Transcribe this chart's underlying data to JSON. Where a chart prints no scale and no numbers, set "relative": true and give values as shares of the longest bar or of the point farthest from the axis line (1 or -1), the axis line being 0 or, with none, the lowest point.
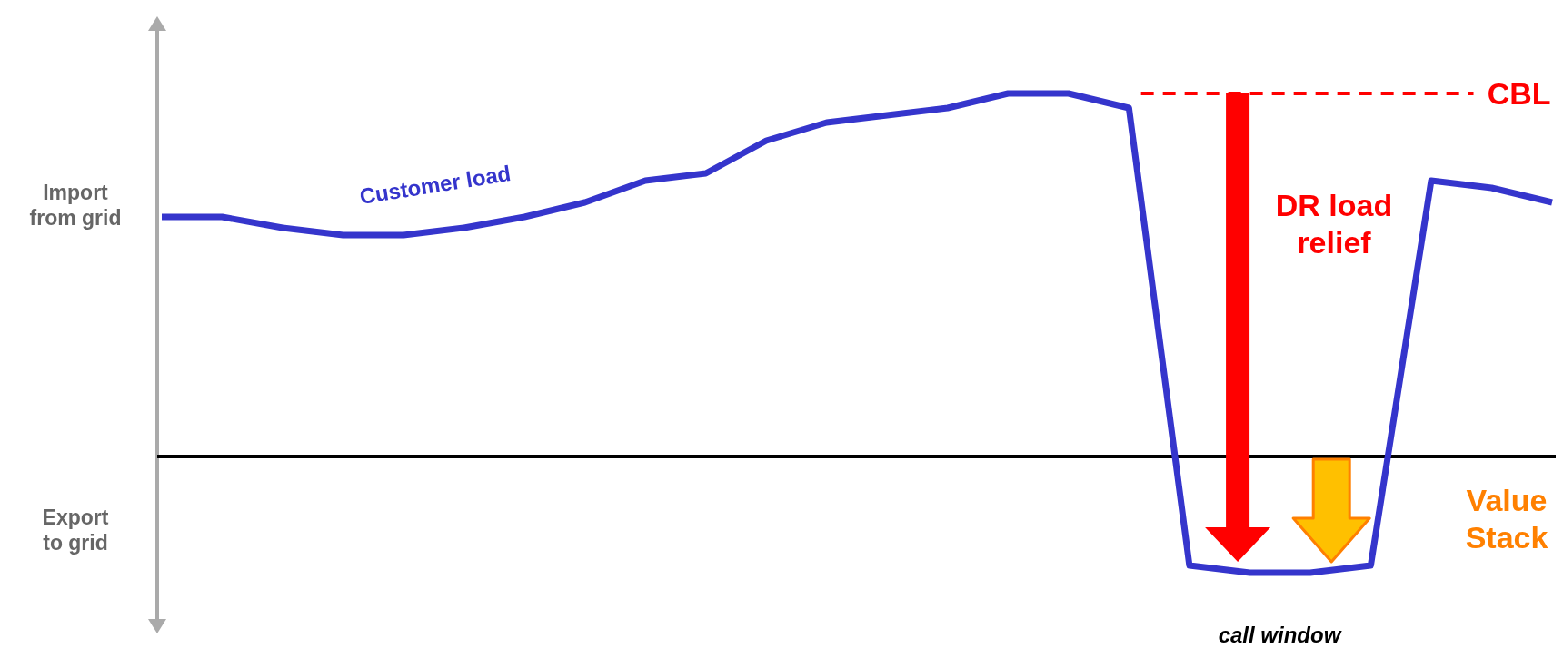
{
  "chart_data": {
    "type": "line",
    "relative": true,
    "categories": [
      null,
      null,
      null,
      null,
      null,
      null,
      null,
      null,
      null,
      null,
      null,
      null,
      null,
      null,
      null,
      null,
      null,
      null,
      null,
      null,
      null,
      null,
      null,
      null
    ],
    "series": [
      {
        "name": "Customer load",
        "color": "#3535cc",
        "values": [
          0.66,
          0.66,
          0.63,
          0.61,
          0.61,
          0.63,
          0.66,
          0.7,
          0.76,
          0.78,
          0.87,
          0.92,
          0.94,
          0.96,
          1,
          1,
          0.96,
          -0.3,
          -0.32,
          -0.32,
          -0.3,
          0.76,
          0.74,
          0.7
        ]
      }
    ],
    "ref_lines": [
      {
        "axis": "y",
        "value": 1,
        "label": "CBL",
        "color": "#ff0000",
        "line_style": "dashed"
      }
    ],
    "annotations": [
      "Import from grid",
      "Export to grid",
      "DR load relief",
      "Value Stack",
      "call window"
    ]
  }
}
